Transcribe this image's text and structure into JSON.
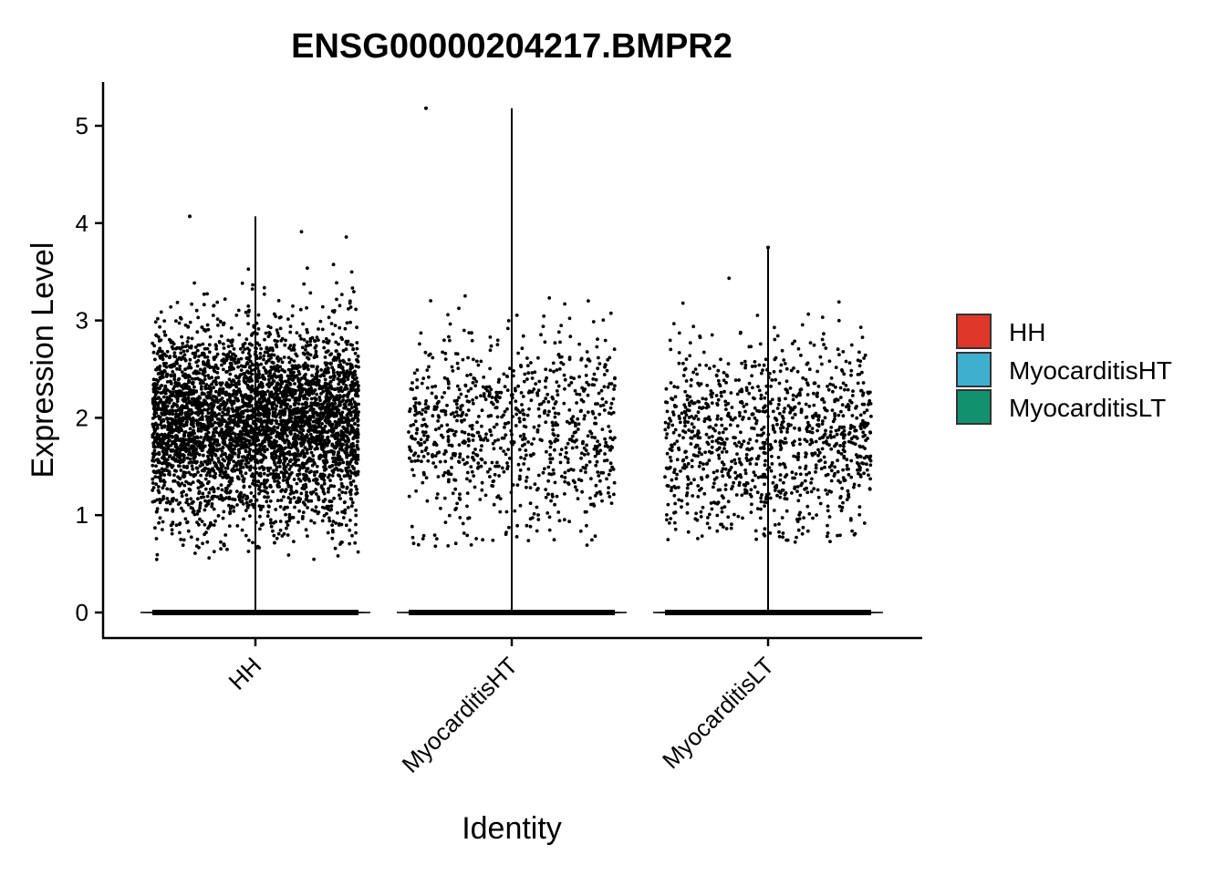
{
  "chart_data": {
    "type": "violin",
    "title": "ENSG00000204217.BMPR2",
    "xlabel": "Identity",
    "ylabel": "Expression Level",
    "ylim": [
      -0.25,
      5.45
    ],
    "yticks": [
      0,
      1,
      2,
      3,
      4,
      5
    ],
    "categories": [
      "HH",
      "MyocarditisHT",
      "MyocarditisLT"
    ],
    "groups": [
      {
        "name": "HH",
        "color": "#E0372B",
        "max": 4.07,
        "zeros": 1,
        "nonzero_points": 4200,
        "nonzero_median": 1.95,
        "nonzero_min": 0.52
      },
      {
        "name": "MyocarditisHT",
        "color": "#3FAFD0",
        "max": 5.18,
        "zeros": 1,
        "nonzero_points": 900,
        "nonzero_median": 1.9,
        "nonzero_min": 0.68
      },
      {
        "name": "MyocarditisLT",
        "color": "#11916D",
        "max": 3.75,
        "zeros": 1,
        "nonzero_points": 1100,
        "nonzero_median": 1.8,
        "nonzero_min": 0.72
      }
    ],
    "legend": {
      "position": "right",
      "entries": [
        {
          "label": "HH",
          "color": "#E0372B"
        },
        {
          "label": "MyocarditisHT",
          "color": "#3FAFD0"
        },
        {
          "label": "MyocarditisLT",
          "color": "#11916D"
        }
      ]
    },
    "grid": false
  }
}
